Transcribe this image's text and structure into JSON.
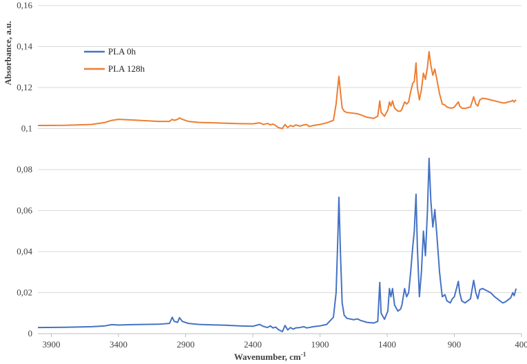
{
  "chart_data": {
    "type": "line",
    "title": "",
    "xlabel": "Wavenumber,  cm",
    "xlabel_superscript": "-1",
    "ylabel": "Absorbance,  a.u.",
    "xlim": [
      4000,
      400
    ],
    "ylim": [
      0,
      0.16
    ],
    "x_reversed": true,
    "x_ticks": [
      3900,
      3400,
      2900,
      2400,
      1900,
      1400,
      900,
      400
    ],
    "x_tick_labels": [
      "3900",
      "3400",
      "2900",
      "2400",
      "1900",
      "1400",
      "900",
      "400"
    ],
    "y_ticks": [
      0,
      0.02,
      0.04,
      0.06,
      0.08,
      0.1,
      0.12,
      0.14,
      0.16
    ],
    "y_tick_labels": [
      "0",
      "0,02",
      "0,04",
      "0,06",
      "0,08",
      "0,1",
      "0,12",
      "0,14",
      "0,16"
    ],
    "grid": "horizontal",
    "legend": "top-left inside plot",
    "series": [
      {
        "name": "PLA 0h",
        "color": "#4472C4",
        "points": [
          [
            4000,
            0.003
          ],
          [
            3800,
            0.0031
          ],
          [
            3600,
            0.0034
          ],
          [
            3500,
            0.0038
          ],
          [
            3450,
            0.0044
          ],
          [
            3400,
            0.0042
          ],
          [
            3300,
            0.0044
          ],
          [
            3100,
            0.0046
          ],
          [
            3020,
            0.005
          ],
          [
            3000,
            0.008
          ],
          [
            2985,
            0.006
          ],
          [
            2960,
            0.0055
          ],
          [
            2946,
            0.0078
          ],
          [
            2925,
            0.006
          ],
          [
            2880,
            0.005
          ],
          [
            2800,
            0.0045
          ],
          [
            2700,
            0.0043
          ],
          [
            2600,
            0.0041
          ],
          [
            2500,
            0.0038
          ],
          [
            2400,
            0.0036
          ],
          [
            2350,
            0.0045
          ],
          [
            2320,
            0.0035
          ],
          [
            2290,
            0.003
          ],
          [
            2270,
            0.0038
          ],
          [
            2250,
            0.0028
          ],
          [
            2230,
            0.0032
          ],
          [
            2210,
            0.002
          ],
          [
            2180,
            0.001
          ],
          [
            2160,
            0.004
          ],
          [
            2140,
            0.0018
          ],
          [
            2120,
            0.003
          ],
          [
            2100,
            0.0022
          ],
          [
            2080,
            0.0028
          ],
          [
            2050,
            0.003
          ],
          [
            2020,
            0.0034
          ],
          [
            2000,
            0.0028
          ],
          [
            1980,
            0.003
          ],
          [
            1950,
            0.0034
          ],
          [
            1900,
            0.0038
          ],
          [
            1850,
            0.0045
          ],
          [
            1800,
            0.008
          ],
          [
            1780,
            0.02
          ],
          [
            1768,
            0.045
          ],
          [
            1759,
            0.0665
          ],
          [
            1748,
            0.04
          ],
          [
            1735,
            0.015
          ],
          [
            1720,
            0.009
          ],
          [
            1700,
            0.0075
          ],
          [
            1650,
            0.0068
          ],
          [
            1620,
            0.0072
          ],
          [
            1600,
            0.0065
          ],
          [
            1550,
            0.0055
          ],
          [
            1500,
            0.0052
          ],
          [
            1470,
            0.006
          ],
          [
            1455,
            0.025
          ],
          [
            1445,
            0.01
          ],
          [
            1420,
            0.007
          ],
          [
            1395,
            0.011
          ],
          [
            1383,
            0.022
          ],
          [
            1372,
            0.018
          ],
          [
            1360,
            0.022
          ],
          [
            1345,
            0.014
          ],
          [
            1320,
            0.011
          ],
          [
            1300,
            0.012
          ],
          [
            1290,
            0.014
          ],
          [
            1270,
            0.022
          ],
          [
            1255,
            0.018
          ],
          [
            1240,
            0.02
          ],
          [
            1225,
            0.03
          ],
          [
            1210,
            0.042
          ],
          [
            1198,
            0.05
          ],
          [
            1185,
            0.068
          ],
          [
            1175,
            0.042
          ],
          [
            1160,
            0.018
          ],
          [
            1145,
            0.03
          ],
          [
            1130,
            0.05
          ],
          [
            1115,
            0.038
          ],
          [
            1100,
            0.06
          ],
          [
            1088,
            0.0855
          ],
          [
            1075,
            0.065
          ],
          [
            1060,
            0.052
          ],
          [
            1045,
            0.0605
          ],
          [
            1030,
            0.048
          ],
          [
            1010,
            0.03
          ],
          [
            990,
            0.018
          ],
          [
            970,
            0.019
          ],
          [
            955,
            0.016
          ],
          [
            930,
            0.015
          ],
          [
            915,
            0.017
          ],
          [
            900,
            0.018
          ],
          [
            870,
            0.0255
          ],
          [
            860,
            0.02
          ],
          [
            845,
            0.016
          ],
          [
            820,
            0.015
          ],
          [
            800,
            0.016
          ],
          [
            780,
            0.017
          ],
          [
            756,
            0.026
          ],
          [
            740,
            0.02
          ],
          [
            725,
            0.017
          ],
          [
            710,
            0.0215
          ],
          [
            690,
            0.022
          ],
          [
            660,
            0.021
          ],
          [
            630,
            0.02
          ],
          [
            600,
            0.018
          ],
          [
            570,
            0.0165
          ],
          [
            540,
            0.015
          ],
          [
            520,
            0.0155
          ],
          [
            500,
            0.0165
          ],
          [
            480,
            0.0175
          ],
          [
            465,
            0.02
          ],
          [
            455,
            0.0185
          ],
          [
            440,
            0.022
          ]
        ]
      },
      {
        "name": "PLA 128h",
        "color": "#ED7D31",
        "points": [
          [
            4000,
            0.1015
          ],
          [
            3800,
            0.1016
          ],
          [
            3600,
            0.102
          ],
          [
            3500,
            0.103
          ],
          [
            3450,
            0.104
          ],
          [
            3400,
            0.1045
          ],
          [
            3300,
            0.1042
          ],
          [
            3100,
            0.1035
          ],
          [
            3020,
            0.1035
          ],
          [
            3000,
            0.1045
          ],
          [
            2985,
            0.104
          ],
          [
            2960,
            0.1045
          ],
          [
            2946,
            0.1052
          ],
          [
            2925,
            0.1045
          ],
          [
            2880,
            0.1035
          ],
          [
            2800,
            0.103
          ],
          [
            2700,
            0.1028
          ],
          [
            2600,
            0.1026
          ],
          [
            2500,
            0.1024
          ],
          [
            2400,
            0.1023
          ],
          [
            2350,
            0.1028
          ],
          [
            2320,
            0.102
          ],
          [
            2290,
            0.1025
          ],
          [
            2270,
            0.1018
          ],
          [
            2250,
            0.1022
          ],
          [
            2230,
            0.1015
          ],
          [
            2210,
            0.1005
          ],
          [
            2180,
            0.1
          ],
          [
            2160,
            0.102
          ],
          [
            2140,
            0.1005
          ],
          [
            2120,
            0.1015
          ],
          [
            2100,
            0.101
          ],
          [
            2080,
            0.1018
          ],
          [
            2050,
            0.1012
          ],
          [
            2020,
            0.1018
          ],
          [
            2000,
            0.102
          ],
          [
            1980,
            0.101
          ],
          [
            1950,
            0.1015
          ],
          [
            1900,
            0.102
          ],
          [
            1850,
            0.1028
          ],
          [
            1800,
            0.104
          ],
          [
            1780,
            0.112
          ],
          [
            1768,
            0.12
          ],
          [
            1759,
            0.1255
          ],
          [
            1748,
            0.118
          ],
          [
            1735,
            0.11
          ],
          [
            1720,
            0.1085
          ],
          [
            1700,
            0.1078
          ],
          [
            1650,
            0.1075
          ],
          [
            1620,
            0.1072
          ],
          [
            1600,
            0.1068
          ],
          [
            1550,
            0.1055
          ],
          [
            1500,
            0.105
          ],
          [
            1470,
            0.106
          ],
          [
            1455,
            0.1135
          ],
          [
            1445,
            0.108
          ],
          [
            1420,
            0.106
          ],
          [
            1395,
            0.109
          ],
          [
            1383,
            0.113
          ],
          [
            1372,
            0.111
          ],
          [
            1360,
            0.1135
          ],
          [
            1345,
            0.11
          ],
          [
            1320,
            0.1085
          ],
          [
            1300,
            0.1085
          ],
          [
            1290,
            0.1095
          ],
          [
            1270,
            0.113
          ],
          [
            1255,
            0.112
          ],
          [
            1240,
            0.113
          ],
          [
            1225,
            0.118
          ],
          [
            1210,
            0.122
          ],
          [
            1198,
            0.123
          ],
          [
            1185,
            0.132
          ],
          [
            1175,
            0.12
          ],
          [
            1160,
            0.114
          ],
          [
            1145,
            0.119
          ],
          [
            1130,
            0.127
          ],
          [
            1115,
            0.124
          ],
          [
            1100,
            0.13
          ],
          [
            1088,
            0.1375
          ],
          [
            1075,
            0.131
          ],
          [
            1060,
            0.126
          ],
          [
            1045,
            0.129
          ],
          [
            1030,
            0.124
          ],
          [
            1010,
            0.117
          ],
          [
            990,
            0.112
          ],
          [
            970,
            0.1115
          ],
          [
            955,
            0.1105
          ],
          [
            930,
            0.11
          ],
          [
            915,
            0.11
          ],
          [
            900,
            0.1105
          ],
          [
            870,
            0.113
          ],
          [
            860,
            0.111
          ],
          [
            845,
            0.11
          ],
          [
            820,
            0.1098
          ],
          [
            800,
            0.1102
          ],
          [
            780,
            0.1105
          ],
          [
            756,
            0.1155
          ],
          [
            740,
            0.112
          ],
          [
            725,
            0.111
          ],
          [
            710,
            0.114
          ],
          [
            690,
            0.1148
          ],
          [
            660,
            0.1145
          ],
          [
            630,
            0.114
          ],
          [
            600,
            0.1135
          ],
          [
            570,
            0.113
          ],
          [
            540,
            0.1125
          ],
          [
            520,
            0.1125
          ],
          [
            500,
            0.113
          ],
          [
            480,
            0.1132
          ],
          [
            465,
            0.1138
          ],
          [
            455,
            0.113
          ],
          [
            440,
            0.114
          ]
        ]
      }
    ]
  },
  "colors": {
    "grid": "#d9d9d9",
    "axis": "#bfbfbf",
    "text": "#404040"
  }
}
